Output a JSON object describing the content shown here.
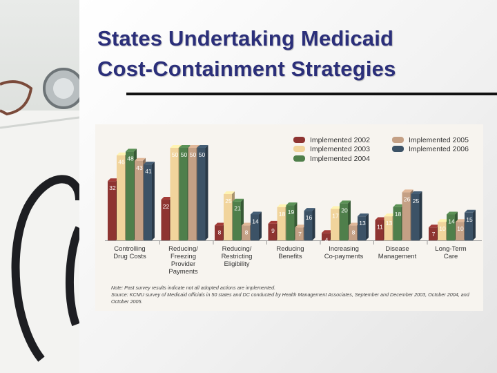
{
  "slide": {
    "title_line1": "States Undertaking Medicaid",
    "title_line2": "Cost-Containment Strategies"
  },
  "chart_data": {
    "type": "bar",
    "categories": [
      "Controlling\nDrug Costs",
      "Reducing/\nFreezing\nProvider\nPayments",
      "Reducing/\nRestricting\nEligibility",
      "Reducing\nBenefits",
      "Increasing\nCo-payments",
      "Disease\nManagement",
      "Long-Term\nCare"
    ],
    "series": [
      {
        "name": "Implemented 2002",
        "color": "#8e3431",
        "values": [
          32,
          22,
          8,
          9,
          4,
          11,
          7
        ]
      },
      {
        "name": "Implemented 2003",
        "color": "#f1d49c",
        "values": [
          46,
          50,
          25,
          18,
          17,
          13,
          10
        ]
      },
      {
        "name": "Implemented 2004",
        "color": "#4f7f4b",
        "values": [
          48,
          50,
          21,
          19,
          20,
          18,
          14
        ]
      },
      {
        "name": "Implemented 2005",
        "color": "#c4a085",
        "values": [
          43,
          50,
          8,
          7,
          8,
          26,
          10
        ]
      },
      {
        "name": "Implemented 2006",
        "color": "#3c5266",
        "values": [
          41,
          50,
          14,
          16,
          13,
          25,
          15
        ]
      }
    ],
    "legend_position": "top-right",
    "ylim": [
      0,
      50
    ],
    "note": "Note: Past survey results indicate not all adopted actions are implemented.",
    "source": "Source: KCMU survey of Medicaid officials in 50 states and DC conducted by Health Management Associates, September and December 2003, October 2004, and October 2005."
  }
}
